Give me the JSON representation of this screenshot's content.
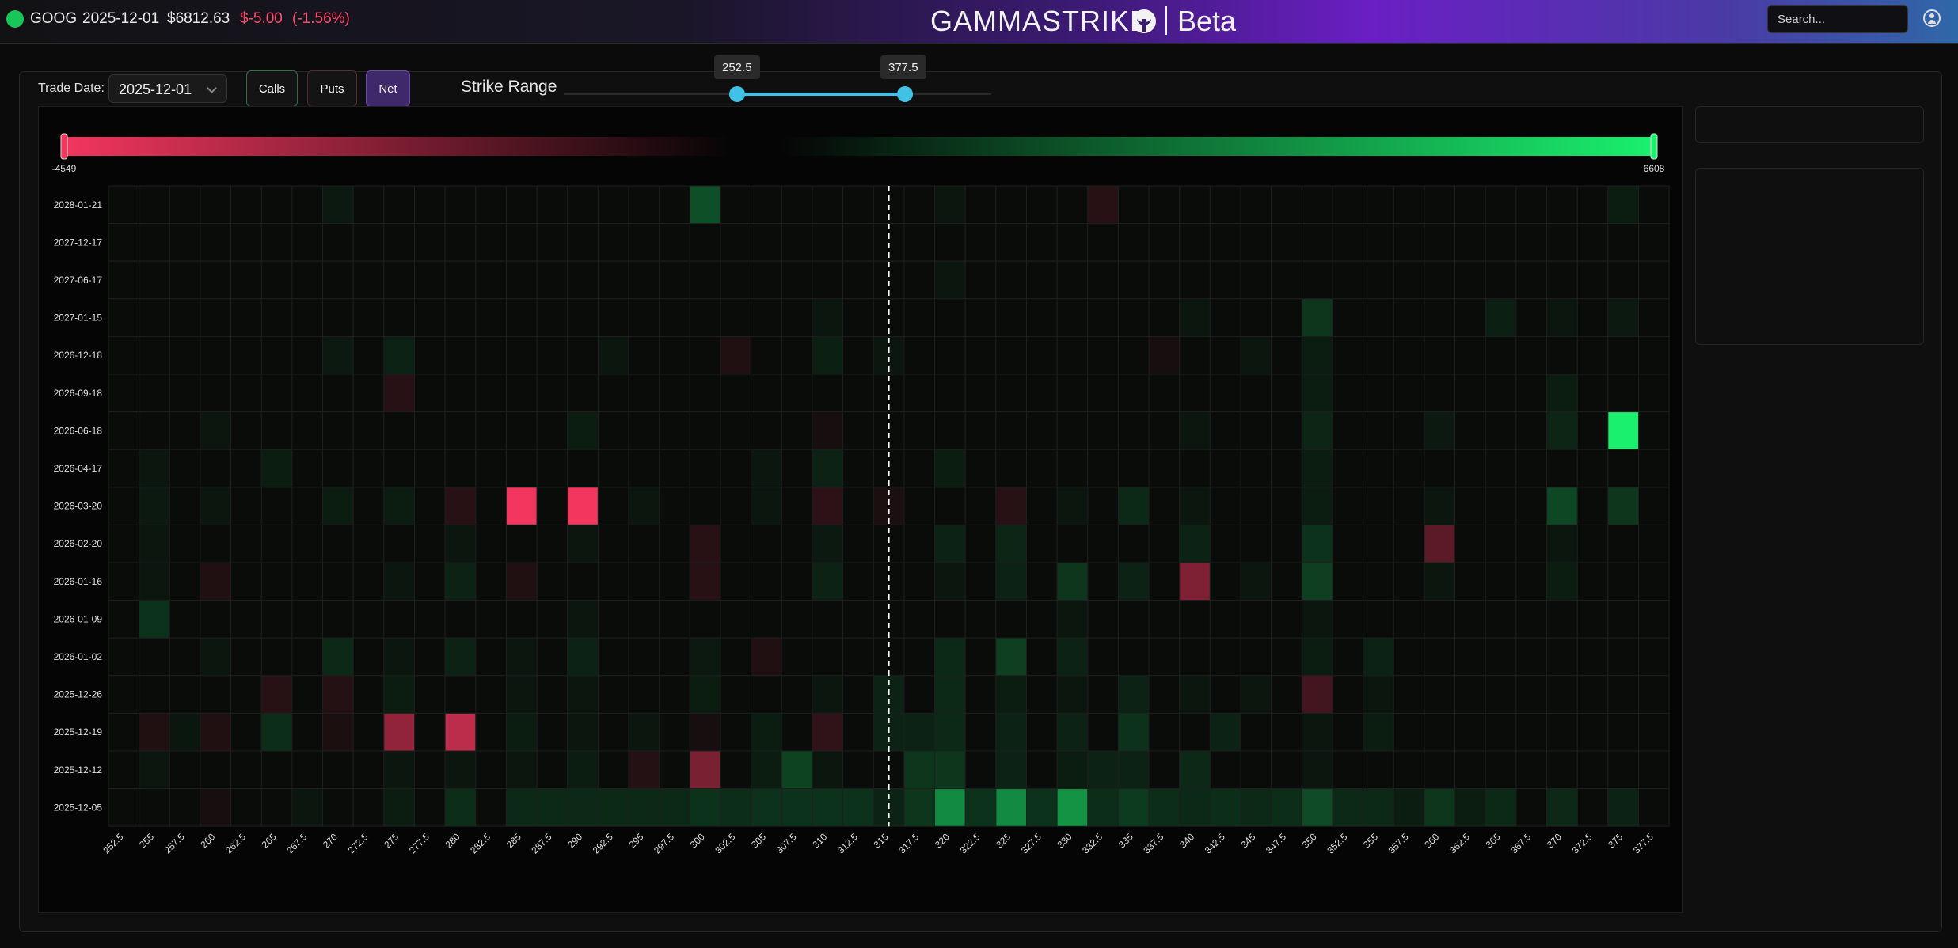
{
  "header": {
    "ticker": "GOOG",
    "date": "2025-12-01",
    "price": "$6812.63",
    "change": "$-5.00",
    "change_pct": "(-1.56%)",
    "brand": "GAMMASTRIKE",
    "beta": "Beta",
    "search_placeholder": "Search...",
    "colors": {
      "status_dot": "#18c75a",
      "negative": "#ff4d6d"
    },
    "icons": {
      "logo": "y-circle-logo-icon",
      "user": "user-circle-icon"
    }
  },
  "controls": {
    "trade_date_label": "Trade Date:",
    "trade_date_value": "2025-12-01",
    "calls_label": "Calls",
    "puts_label": "Puts",
    "net_label": "Net",
    "active_mode": "Net",
    "strike_range_label": "Strike Range",
    "range_min": "252.5",
    "range_max": "377.5",
    "accent_color": "#3fc2e6"
  },
  "chart_data": {
    "type": "heatmap",
    "colorbar": {
      "min": -4549,
      "max": 6608,
      "min_label": "-4549",
      "max_label": "6608",
      "negative_color": "#f2365e",
      "positive_color": "#1af06e"
    },
    "spot_marker_strike": 315,
    "grid": true,
    "strikes": [
      "252.5",
      "255",
      "257.5",
      "260",
      "262.5",
      "265",
      "267.5",
      "270",
      "272.5",
      "275",
      "277.5",
      "280",
      "282.5",
      "285",
      "287.5",
      "290",
      "292.5",
      "295",
      "297.5",
      "300",
      "302.5",
      "305",
      "307.5",
      "310",
      "312.5",
      "315",
      "317.5",
      "320",
      "322.5",
      "325",
      "327.5",
      "330",
      "332.5",
      "335",
      "337.5",
      "340",
      "342.5",
      "345",
      "347.5",
      "350",
      "352.5",
      "355",
      "357.5",
      "360",
      "362.5",
      "365",
      "367.5",
      "370",
      "372.5",
      "375",
      "377.5"
    ],
    "expirations": [
      "2028-01-21",
      "2027-12-17",
      "2027-06-17",
      "2027-01-15",
      "2026-12-18",
      "2026-09-18",
      "2026-06-18",
      "2026-04-17",
      "2026-03-20",
      "2026-02-20",
      "2026-01-16",
      "2026-01-09",
      "2026-01-02",
      "2025-12-26",
      "2025-12-19",
      "2025-12-12",
      "2025-12-05"
    ],
    "values": [
      [
        0,
        0,
        0,
        0,
        0,
        0,
        0,
        150,
        0,
        0,
        0,
        0,
        0,
        0,
        0,
        0,
        0,
        0,
        0,
        1300,
        0,
        0,
        0,
        0,
        0,
        0,
        0,
        100,
        0,
        0,
        0,
        0,
        -300,
        0,
        0,
        0,
        0,
        0,
        0,
        0,
        0,
        0,
        0,
        0,
        0,
        0,
        0,
        0,
        0,
        200,
        0
      ],
      [
        0,
        0,
        0,
        0,
        0,
        0,
        0,
        0,
        0,
        0,
        0,
        0,
        0,
        0,
        0,
        0,
        0,
        0,
        0,
        0,
        0,
        0,
        0,
        0,
        0,
        0,
        0,
        0,
        0,
        0,
        0,
        0,
        0,
        0,
        0,
        0,
        0,
        0,
        0,
        0,
        0,
        0,
        0,
        0,
        0,
        0,
        0,
        0,
        0,
        0,
        0
      ],
      [
        0,
        0,
        0,
        0,
        0,
        0,
        0,
        0,
        0,
        0,
        0,
        0,
        0,
        0,
        0,
        0,
        0,
        0,
        0,
        0,
        0,
        0,
        0,
        0,
        0,
        0,
        0,
        100,
        0,
        0,
        0,
        0,
        0,
        0,
        0,
        0,
        0,
        0,
        0,
        0,
        0,
        0,
        0,
        0,
        0,
        0,
        0,
        0,
        0,
        0,
        0
      ],
      [
        0,
        0,
        0,
        0,
        0,
        0,
        0,
        0,
        0,
        0,
        0,
        0,
        0,
        0,
        0,
        0,
        0,
        0,
        0,
        0,
        0,
        0,
        0,
        100,
        0,
        0,
        0,
        0,
        0,
        0,
        0,
        0,
        0,
        0,
        0,
        100,
        0,
        0,
        0,
        700,
        0,
        0,
        0,
        0,
        0,
        250,
        0,
        100,
        0,
        150,
        0
      ],
      [
        0,
        0,
        0,
        0,
        0,
        0,
        0,
        150,
        0,
        300,
        0,
        0,
        0,
        0,
        0,
        0,
        100,
        0,
        0,
        0,
        -200,
        0,
        0,
        250,
        0,
        100,
        0,
        0,
        0,
        0,
        0,
        0,
        0,
        0,
        -100,
        0,
        0,
        100,
        0,
        200,
        0,
        0,
        0,
        0,
        0,
        0,
        0,
        0,
        0,
        0,
        0
      ],
      [
        0,
        0,
        0,
        0,
        0,
        0,
        0,
        0,
        0,
        -300,
        0,
        0,
        0,
        0,
        0,
        0,
        0,
        0,
        0,
        0,
        0,
        0,
        0,
        0,
        0,
        0,
        0,
        0,
        0,
        0,
        0,
        0,
        0,
        0,
        0,
        0,
        0,
        0,
        0,
        200,
        0,
        0,
        0,
        0,
        0,
        0,
        0,
        200,
        0,
        0,
        0
      ],
      [
        0,
        0,
        0,
        100,
        0,
        0,
        0,
        0,
        0,
        0,
        0,
        0,
        0,
        0,
        0,
        200,
        0,
        0,
        0,
        0,
        0,
        0,
        0,
        -100,
        0,
        0,
        0,
        0,
        0,
        0,
        0,
        0,
        0,
        0,
        0,
        100,
        0,
        0,
        0,
        350,
        0,
        0,
        0,
        150,
        0,
        0,
        0,
        350,
        0,
        6608,
        0
      ],
      [
        0,
        100,
        0,
        0,
        0,
        200,
        0,
        0,
        0,
        0,
        0,
        0,
        0,
        0,
        0,
        0,
        0,
        0,
        0,
        0,
        0,
        100,
        0,
        300,
        0,
        0,
        0,
        200,
        0,
        0,
        0,
        0,
        0,
        0,
        0,
        0,
        0,
        0,
        0,
        200,
        0,
        0,
        0,
        0,
        0,
        0,
        0,
        0,
        0,
        0,
        0
      ],
      [
        0,
        150,
        0,
        100,
        0,
        0,
        0,
        200,
        0,
        200,
        0,
        -300,
        0,
        -4549,
        0,
        -4549,
        0,
        100,
        0,
        0,
        0,
        100,
        0,
        -350,
        0,
        -150,
        0,
        0,
        0,
        -300,
        0,
        100,
        0,
        400,
        0,
        100,
        0,
        0,
        0,
        200,
        0,
        0,
        0,
        100,
        0,
        0,
        0,
        1100,
        0,
        700,
        0
      ],
      [
        0,
        100,
        0,
        0,
        0,
        0,
        0,
        0,
        0,
        0,
        0,
        100,
        0,
        0,
        0,
        100,
        0,
        0,
        0,
        -300,
        0,
        0,
        0,
        150,
        0,
        0,
        0,
        300,
        0,
        350,
        0,
        0,
        0,
        0,
        0,
        300,
        0,
        0,
        0,
        600,
        0,
        0,
        0,
        -1100,
        0,
        0,
        0,
        100,
        0,
        0,
        0
      ],
      [
        0,
        100,
        0,
        -200,
        0,
        0,
        0,
        0,
        0,
        100,
        0,
        300,
        0,
        -200,
        0,
        0,
        0,
        0,
        0,
        -300,
        0,
        0,
        0,
        300,
        0,
        0,
        0,
        100,
        0,
        300,
        0,
        700,
        0,
        300,
        0,
        -1800,
        0,
        100,
        0,
        900,
        0,
        0,
        0,
        100,
        0,
        0,
        0,
        200,
        0,
        0,
        0
      ],
      [
        0,
        600,
        0,
        0,
        0,
        0,
        0,
        0,
        0,
        0,
        0,
        0,
        0,
        0,
        0,
        100,
        0,
        0,
        0,
        0,
        0,
        0,
        0,
        0,
        0,
        0,
        0,
        0,
        0,
        0,
        0,
        100,
        0,
        0,
        0,
        0,
        0,
        0,
        0,
        100,
        0,
        0,
        0,
        0,
        0,
        0,
        0,
        0,
        0,
        0,
        0
      ],
      [
        0,
        0,
        0,
        100,
        0,
        0,
        0,
        400,
        0,
        100,
        0,
        300,
        0,
        100,
        0,
        300,
        0,
        0,
        0,
        150,
        0,
        -200,
        0,
        0,
        0,
        0,
        0,
        400,
        0,
        900,
        0,
        300,
        0,
        0,
        0,
        0,
        0,
        0,
        0,
        200,
        0,
        300,
        0,
        0,
        0,
        0,
        0,
        0,
        0,
        0,
        0
      ],
      [
        0,
        0,
        0,
        0,
        0,
        -300,
        0,
        -250,
        0,
        200,
        0,
        0,
        0,
        100,
        0,
        100,
        0,
        0,
        0,
        200,
        0,
        0,
        0,
        100,
        0,
        300,
        0,
        400,
        0,
        200,
        0,
        100,
        0,
        300,
        0,
        100,
        0,
        100,
        0,
        -700,
        0,
        100,
        0,
        0,
        0,
        0,
        0,
        0,
        0,
        0,
        0
      ],
      [
        0,
        -200,
        100,
        -200,
        0,
        500,
        0,
        -150,
        0,
        -2200,
        0,
        -3200,
        0,
        200,
        0,
        100,
        0,
        100,
        0,
        -100,
        0,
        200,
        0,
        -400,
        0,
        300,
        300,
        400,
        0,
        300,
        0,
        300,
        0,
        600,
        0,
        0,
        300,
        0,
        0,
        100,
        0,
        200,
        0,
        0,
        0,
        0,
        0,
        0,
        0,
        0,
        0
      ],
      [
        0,
        100,
        0,
        0,
        0,
        0,
        0,
        0,
        0,
        100,
        0,
        100,
        0,
        100,
        0,
        200,
        0,
        -250,
        0,
        -1700,
        0,
        200,
        1000,
        100,
        0,
        0,
        700,
        700,
        0,
        300,
        0,
        200,
        300,
        300,
        0,
        400,
        0,
        0,
        0,
        100,
        0,
        0,
        0,
        0,
        0,
        0,
        0,
        0,
        0,
        0,
        0
      ],
      [
        0,
        0,
        0,
        -100,
        0,
        0,
        100,
        0,
        0,
        200,
        0,
        500,
        0,
        400,
        400,
        400,
        400,
        400,
        400,
        600,
        500,
        600,
        600,
        600,
        600,
        300,
        700,
        3000,
        600,
        3000,
        600,
        3300,
        500,
        800,
        500,
        400,
        500,
        400,
        500,
        1200,
        400,
        400,
        200,
        700,
        200,
        400,
        0,
        400,
        0,
        300,
        0
      ]
    ]
  }
}
